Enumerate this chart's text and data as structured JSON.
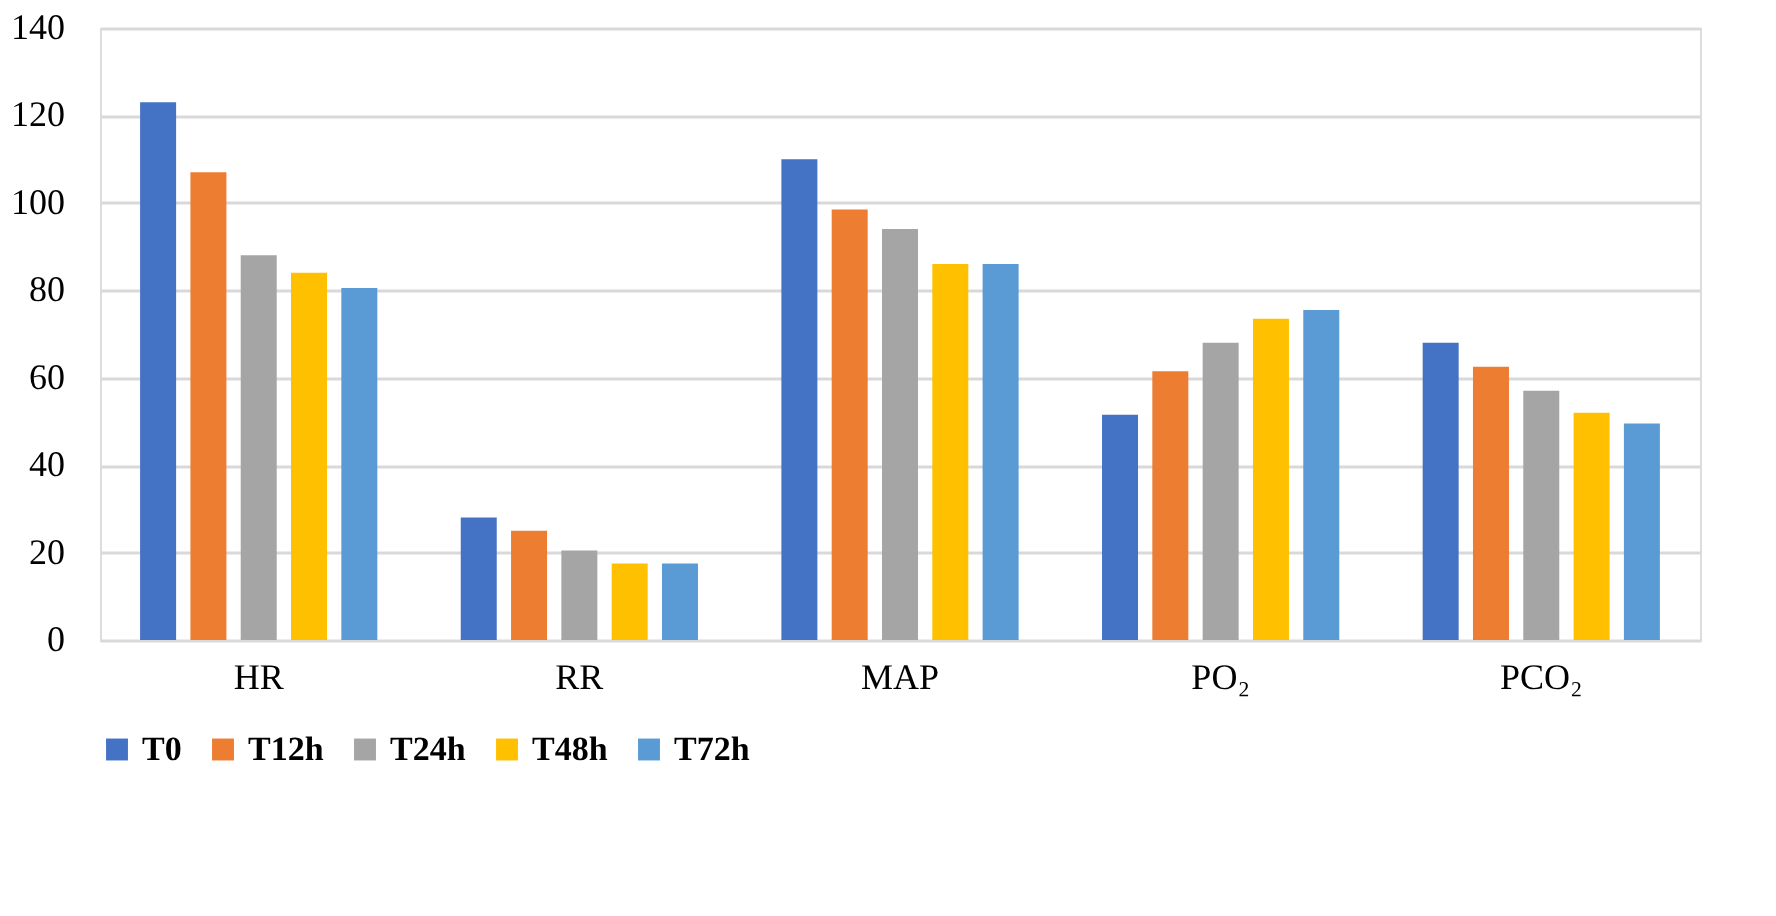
{
  "chart_data": {
    "type": "bar",
    "categories": [
      "HR",
      "RR",
      "MAP",
      "PO₂",
      "PCO₂"
    ],
    "series": [
      {
        "name": "T0",
        "color": "#4472c4",
        "values": [
          123,
          28,
          110,
          51.5,
          68
        ]
      },
      {
        "name": "T12h",
        "color": "#ed7d31",
        "values": [
          107,
          25,
          98.5,
          61.5,
          62.5
        ]
      },
      {
        "name": "T24h",
        "color": "#a5a5a5",
        "values": [
          88,
          20.5,
          94,
          68,
          57
        ]
      },
      {
        "name": "T48h",
        "color": "#ffc000",
        "values": [
          84,
          17.5,
          86,
          73.5,
          52
        ]
      },
      {
        "name": "T72h",
        "color": "#5b9bd5",
        "values": [
          80.5,
          17.5,
          86,
          75.5,
          49.5
        ]
      }
    ],
    "ylim": [
      0,
      140
    ],
    "yticks": [
      0,
      20,
      40,
      60,
      80,
      100,
      120,
      140
    ],
    "grid": "y",
    "legend": "bottom"
  }
}
